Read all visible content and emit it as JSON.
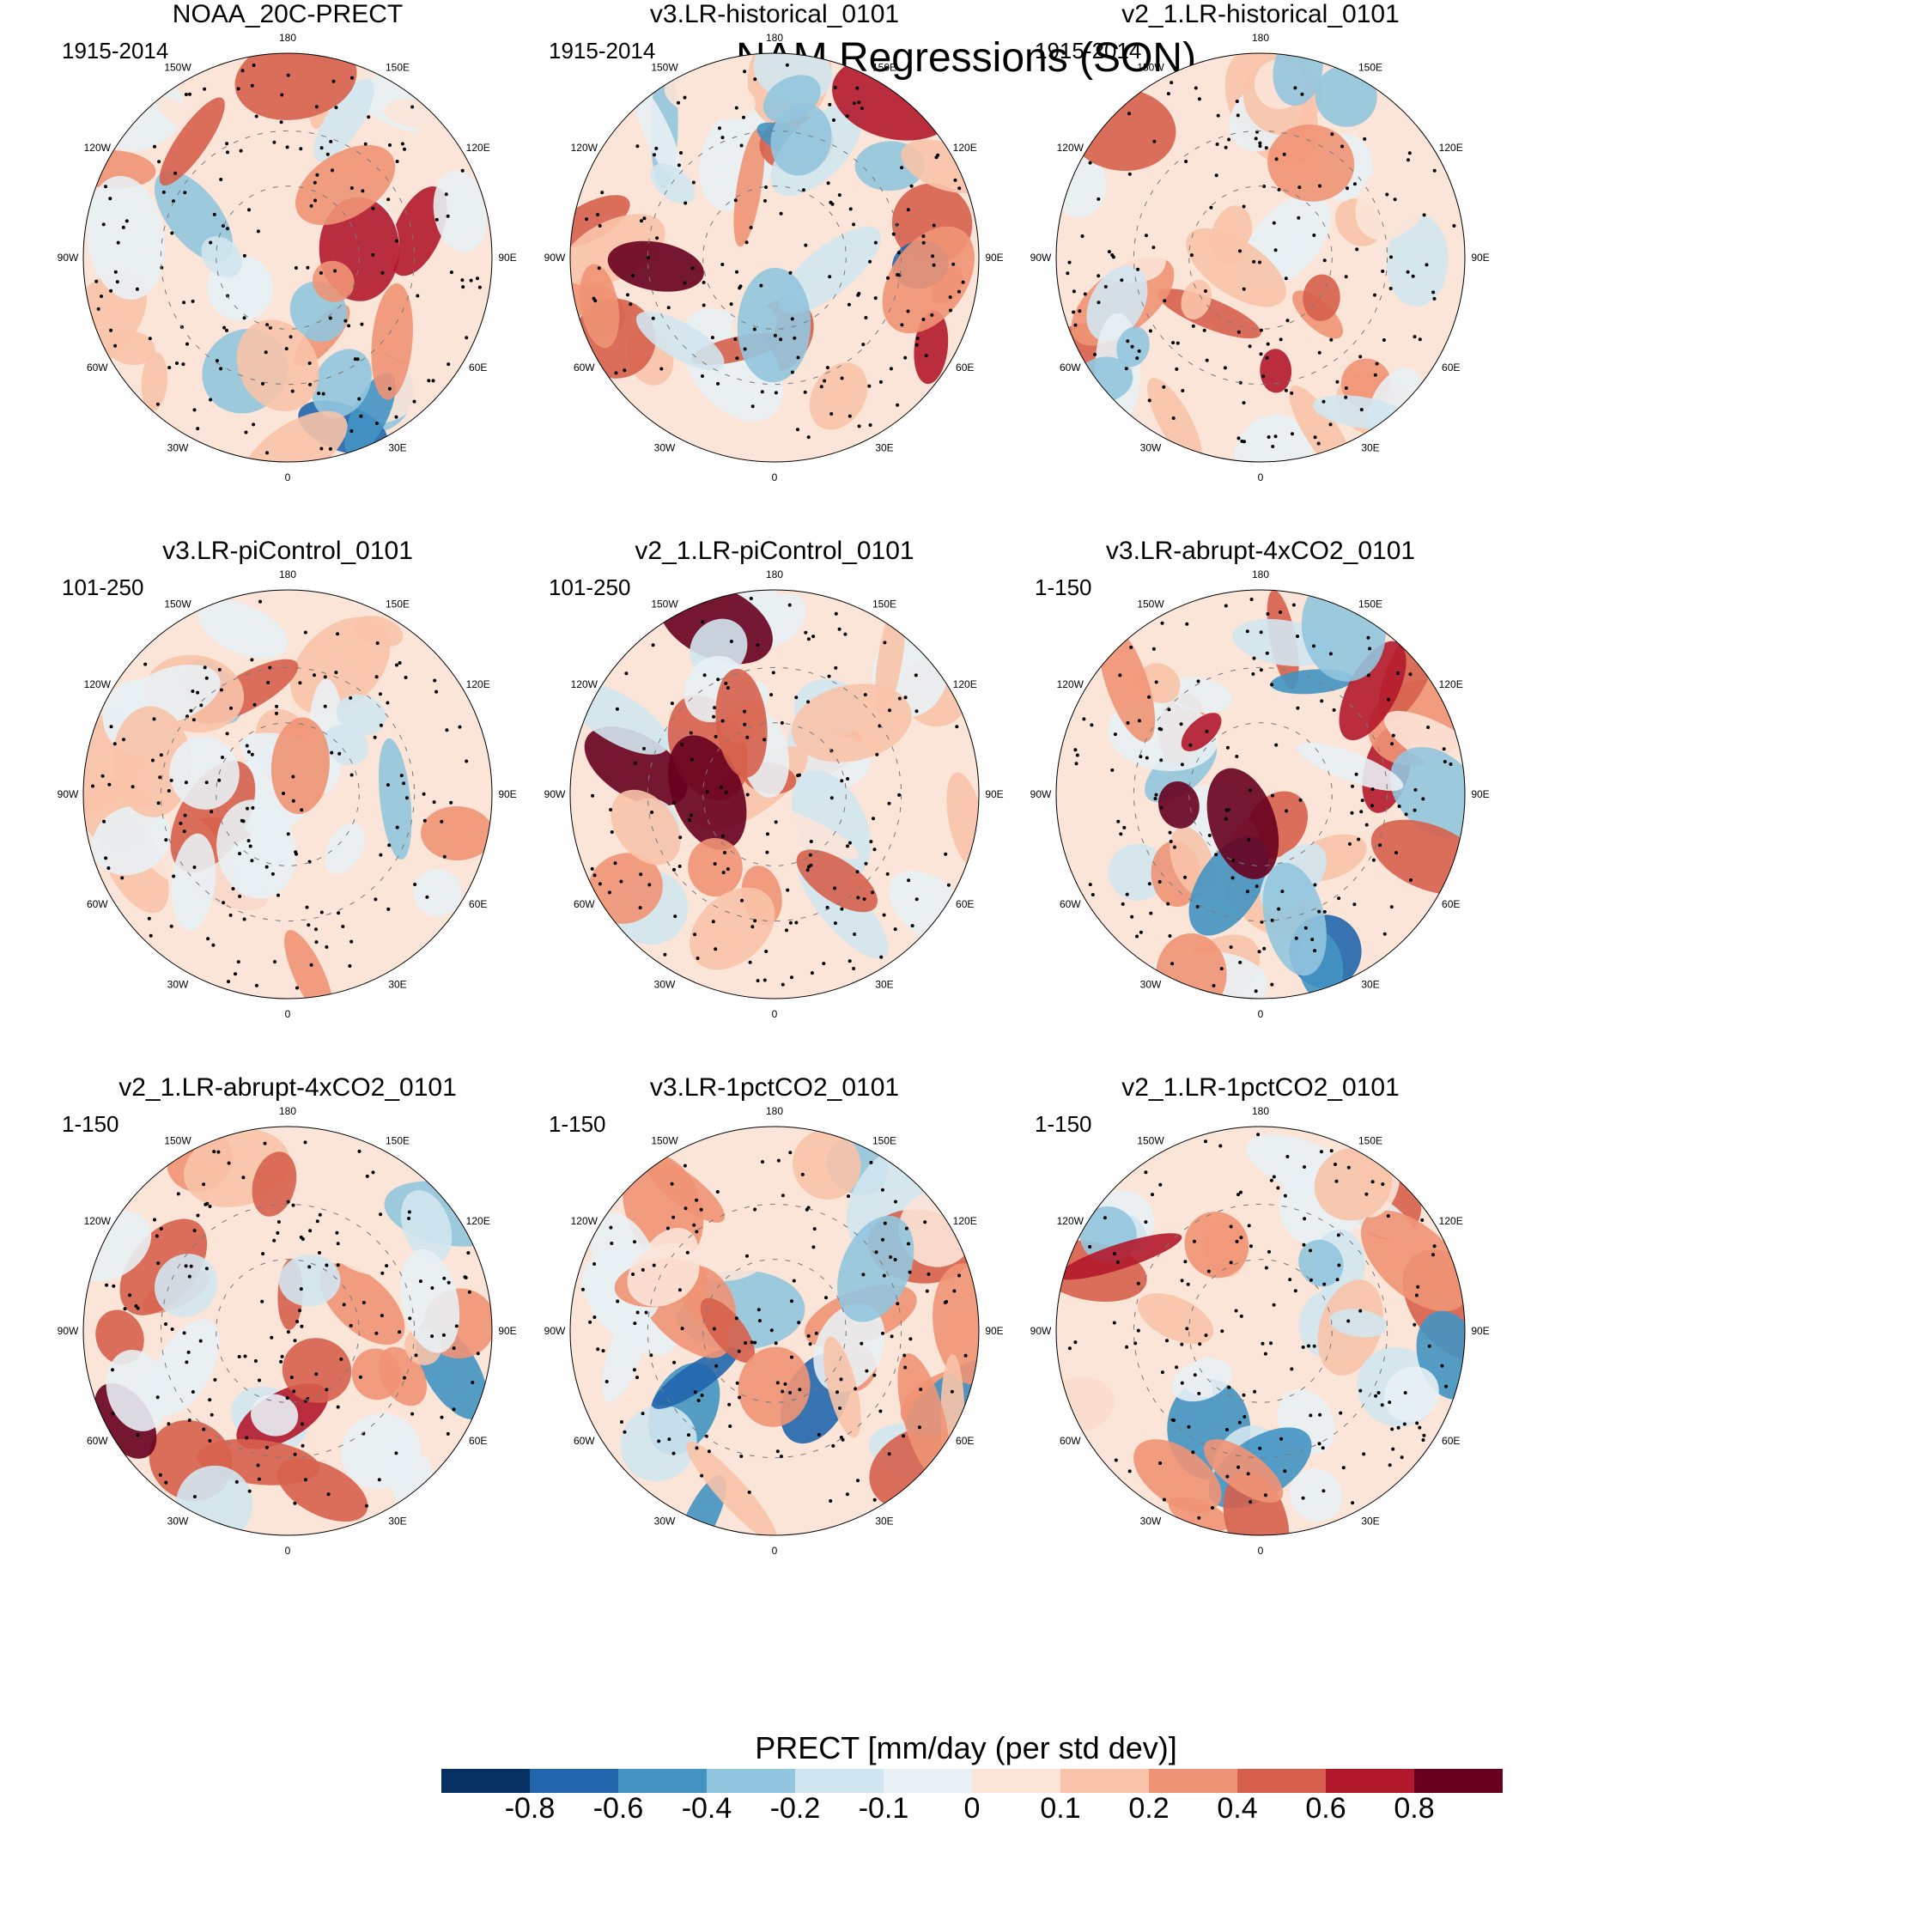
{
  "title": "NAM Regressions (SON)",
  "panels": [
    {
      "title": "NOAA_20C-PRECT",
      "period": "1915-2014"
    },
    {
      "title": "v3.LR-historical_0101",
      "period": "1915-2014"
    },
    {
      "title": "v2_1.LR-historical_0101",
      "period": "1915-2014"
    },
    {
      "title": "v3.LR-piControl_0101",
      "period": "101-250"
    },
    {
      "title": "v2_1.LR-piControl_0101",
      "period": "101-250"
    },
    {
      "title": "v3.LR-abrupt-4xCO2_0101",
      "period": "1-150"
    },
    {
      "title": "v2_1.LR-abrupt-4xCO2_0101",
      "period": "1-150"
    },
    {
      "title": "v3.LR-1pctCO2_0101",
      "period": "1-150"
    },
    {
      "title": "v2_1.LR-1pctCO2_0101",
      "period": "1-150"
    }
  ],
  "longitude_labels": [
    "180",
    "150E",
    "120E",
    "90E",
    "60E",
    "30E",
    "0",
    "30W",
    "60W",
    "90W",
    "120W",
    "150W"
  ],
  "colorbar": {
    "title": "PRECT [mm/day (per std dev)]",
    "tick_labels": [
      "-0.8",
      "-0.6",
      "-0.4",
      "-0.2",
      "-0.1",
      "0",
      "0.1",
      "0.2",
      "0.4",
      "0.6",
      "0.8"
    ],
    "colors": [
      "#053061",
      "#2166ac",
      "#4393c3",
      "#92c5de",
      "#d1e5f0",
      "#e8f0f4",
      "#fbe4d8",
      "#f8c3a8",
      "#ef9474",
      "#d6604d",
      "#b2182b",
      "#67001f"
    ]
  }
}
